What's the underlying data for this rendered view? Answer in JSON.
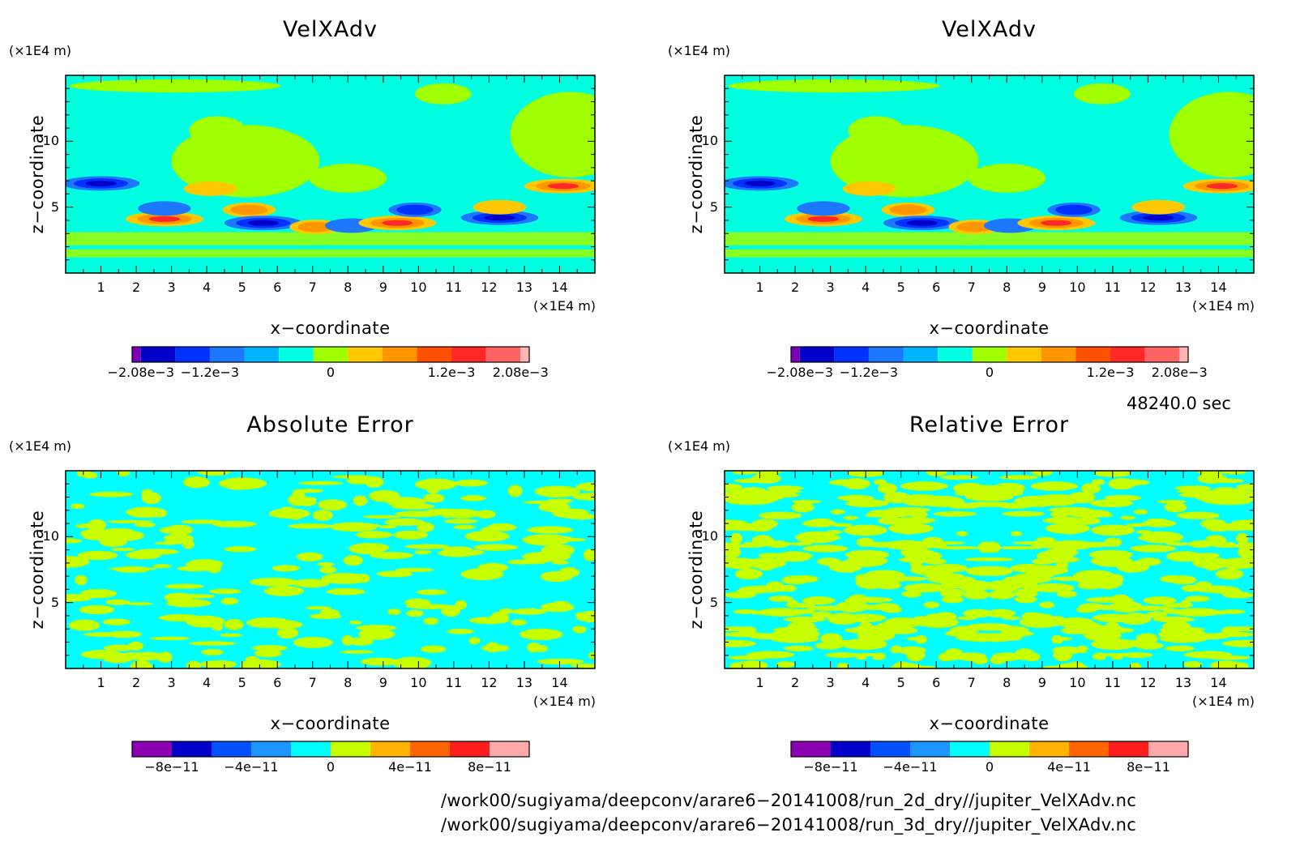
{
  "panels": [
    {
      "title": "VelXAdv",
      "x_unit": "(×1E4 m)",
      "y_unit": "(×1E4 m)",
      "xlabel": "x−coordinate",
      "ylabel": "z−coordinate",
      "x_ticks": [
        "1",
        "2",
        "3",
        "4",
        "5",
        "6",
        "7",
        "8",
        "9",
        "10",
        "11",
        "12",
        "13",
        "14"
      ],
      "y_ticks": [
        "5",
        "10"
      ],
      "colorbar": {
        "colors": [
          "#7b00b4",
          "#0000c8",
          "#0032ff",
          "#1e78ff",
          "#00b4ff",
          "#00ffe0",
          "#a0ff00",
          "#ffc800",
          "#ff9600",
          "#ff5000",
          "#ff2828",
          "#ff6464",
          "#ffb4b4"
        ],
        "labels": [
          "−2.08e−3",
          "−1.2e−3",
          "0",
          "1.2e−3",
          "2.08e−3"
        ]
      }
    },
    {
      "title": "VelXAdv",
      "x_unit": "(×1E4 m)",
      "y_unit": "(×1E4 m)",
      "xlabel": "x−coordinate",
      "ylabel": "z−coordinate",
      "x_ticks": [
        "1",
        "2",
        "3",
        "4",
        "5",
        "6",
        "7",
        "8",
        "9",
        "10",
        "11",
        "12",
        "13",
        "14"
      ],
      "y_ticks": [
        "5",
        "10"
      ],
      "colorbar": {
        "colors": [
          "#7b00b4",
          "#0000c8",
          "#0032ff",
          "#1e78ff",
          "#00b4ff",
          "#00ffe0",
          "#a0ff00",
          "#ffc800",
          "#ff9600",
          "#ff5000",
          "#ff2828",
          "#ff6464",
          "#ffb4b4"
        ],
        "labels": [
          "−2.08e−3",
          "−1.2e−3",
          "0",
          "1.2e−3",
          "2.08e−3"
        ]
      }
    },
    {
      "title": "Absolute Error",
      "x_unit": "(×1E4 m)",
      "y_unit": "(×1E4 m)",
      "xlabel": "x−coordinate",
      "ylabel": "z−coordinate",
      "x_ticks": [
        "1",
        "2",
        "3",
        "4",
        "5",
        "6",
        "7",
        "8",
        "9",
        "10",
        "11",
        "12",
        "13",
        "14"
      ],
      "y_ticks": [
        "5",
        "10"
      ],
      "colorbar": {
        "colors": [
          "#8c00b4",
          "#0000c8",
          "#0050ff",
          "#1e96ff",
          "#00ffff",
          "#c8ff00",
          "#ffb400",
          "#ff6400",
          "#ff1e1e",
          "#ffaaaa"
        ],
        "labels": [
          "−8e−11",
          "−4e−11",
          "0",
          "4e−11",
          "8e−11"
        ]
      }
    },
    {
      "title": "Relative Error",
      "x_unit": "(×1E4 m)",
      "y_unit": "(×1E4 m)",
      "xlabel": "x−coordinate",
      "ylabel": "z−coordinate",
      "x_ticks": [
        "1",
        "2",
        "3",
        "4",
        "5",
        "6",
        "7",
        "8",
        "9",
        "10",
        "11",
        "12",
        "13",
        "14"
      ],
      "y_ticks": [
        "5",
        "10"
      ],
      "colorbar": {
        "colors": [
          "#8c00b4",
          "#0000c8",
          "#0050ff",
          "#1e96ff",
          "#00ffff",
          "#c8ff00",
          "#ffb400",
          "#ff6400",
          "#ff1e1e",
          "#ffaaaa"
        ],
        "labels": [
          "−8e−11",
          "−4e−11",
          "0",
          "4e−11",
          "8e−11"
        ]
      }
    }
  ],
  "time_stamp": "48240.0 sec",
  "file_paths": [
    "/work00/sugiyama/deepconv/arare6−20141008/run_2d_dry//jupiter_VelXAdv.nc",
    "/work00/sugiyama/deepconv/arare6−20141008/run_3d_dry//jupiter_VelXAdv.nc"
  ],
  "chart_data": [
    {
      "type": "heatmap",
      "title": "VelXAdv",
      "xlabel": "x−coordinate",
      "ylabel": "z−coordinate",
      "xlim": [
        0,
        15
      ],
      "ylim": [
        0,
        15
      ],
      "x_unit": "(×1E4 m)",
      "y_unit": "(×1E4 m)",
      "colorbar_range": [
        -0.00208,
        0.00208
      ],
      "colorbar_ticks": [
        "−2.08e−3",
        "−1.2e−3",
        "0",
        "1.2e−3",
        "2.08e−3"
      ],
      "features": [
        {
          "x": 1.0,
          "z": 6.8,
          "value": -0.0018
        },
        {
          "x": 2.8,
          "z": 4.1,
          "value": 0.0019
        },
        {
          "x": 2.8,
          "z": 4.9,
          "value": -0.0008
        },
        {
          "x": 4.1,
          "z": 6.4,
          "value": 0.0009
        },
        {
          "x": 5.2,
          "z": 4.8,
          "value": 0.0013
        },
        {
          "x": 5.6,
          "z": 3.8,
          "value": -0.0017
        },
        {
          "x": 7.1,
          "z": 3.5,
          "value": 0.0011
        },
        {
          "x": 8.1,
          "z": 3.6,
          "value": -0.001
        },
        {
          "x": 9.4,
          "z": 3.8,
          "value": 0.0017
        },
        {
          "x": 9.9,
          "z": 4.8,
          "value": -0.0012
        },
        {
          "x": 12.3,
          "z": 4.2,
          "value": -0.0019
        },
        {
          "x": 12.3,
          "z": 5.0,
          "value": 0.0008
        },
        {
          "x": 14.1,
          "z": 6.6,
          "value": 0.0018
        }
      ]
    },
    {
      "type": "heatmap",
      "title": "VelXAdv",
      "xlabel": "x−coordinate",
      "ylabel": "z−coordinate",
      "xlim": [
        0,
        15
      ],
      "ylim": [
        0,
        15
      ],
      "x_unit": "(×1E4 m)",
      "y_unit": "(×1E4 m)",
      "colorbar_range": [
        -0.00208,
        0.00208
      ],
      "colorbar_ticks": [
        "−2.08e−3",
        "−1.2e−3",
        "0",
        "1.2e−3",
        "2.08e−3"
      ],
      "features": [
        {
          "x": 1.0,
          "z": 6.8,
          "value": -0.0018
        },
        {
          "x": 2.8,
          "z": 4.1,
          "value": 0.0019
        },
        {
          "x": 2.8,
          "z": 4.9,
          "value": -0.0008
        },
        {
          "x": 4.1,
          "z": 6.4,
          "value": 0.0009
        },
        {
          "x": 5.2,
          "z": 4.8,
          "value": 0.0013
        },
        {
          "x": 5.6,
          "z": 3.8,
          "value": -0.0017
        },
        {
          "x": 7.1,
          "z": 3.5,
          "value": 0.0011
        },
        {
          "x": 8.1,
          "z": 3.6,
          "value": -0.001
        },
        {
          "x": 9.4,
          "z": 3.8,
          "value": 0.0017
        },
        {
          "x": 9.9,
          "z": 4.8,
          "value": -0.0012
        },
        {
          "x": 12.3,
          "z": 4.2,
          "value": -0.0019
        },
        {
          "x": 12.3,
          "z": 5.0,
          "value": 0.0008
        },
        {
          "x": 14.1,
          "z": 6.6,
          "value": 0.0018
        }
      ]
    },
    {
      "type": "heatmap",
      "title": "Absolute Error",
      "xlabel": "x−coordinate",
      "ylabel": "z−coordinate",
      "xlim": [
        0,
        15
      ],
      "ylim": [
        0,
        15
      ],
      "x_unit": "(×1E4 m)",
      "y_unit": "(×1E4 m)",
      "colorbar_range": [
        -1e-10,
        1e-10
      ],
      "colorbar_ticks": [
        "−8e−11",
        "−4e−11",
        "0",
        "4e−11",
        "8e−11"
      ],
      "pattern": "noise between -1e-11 and 1e-11"
    },
    {
      "type": "heatmap",
      "title": "Relative Error",
      "xlabel": "x−coordinate",
      "ylabel": "z−coordinate",
      "xlim": [
        0,
        15
      ],
      "ylim": [
        0,
        15
      ],
      "x_unit": "(×1E4 m)",
      "y_unit": "(×1E4 m)",
      "colorbar_range": [
        -1e-10,
        1e-10
      ],
      "colorbar_ticks": [
        "−8e−11",
        "−4e−11",
        "0",
        "4e−11",
        "8e−11"
      ],
      "pattern": "symmetric noise between -1e-11 and 1e-11"
    }
  ]
}
